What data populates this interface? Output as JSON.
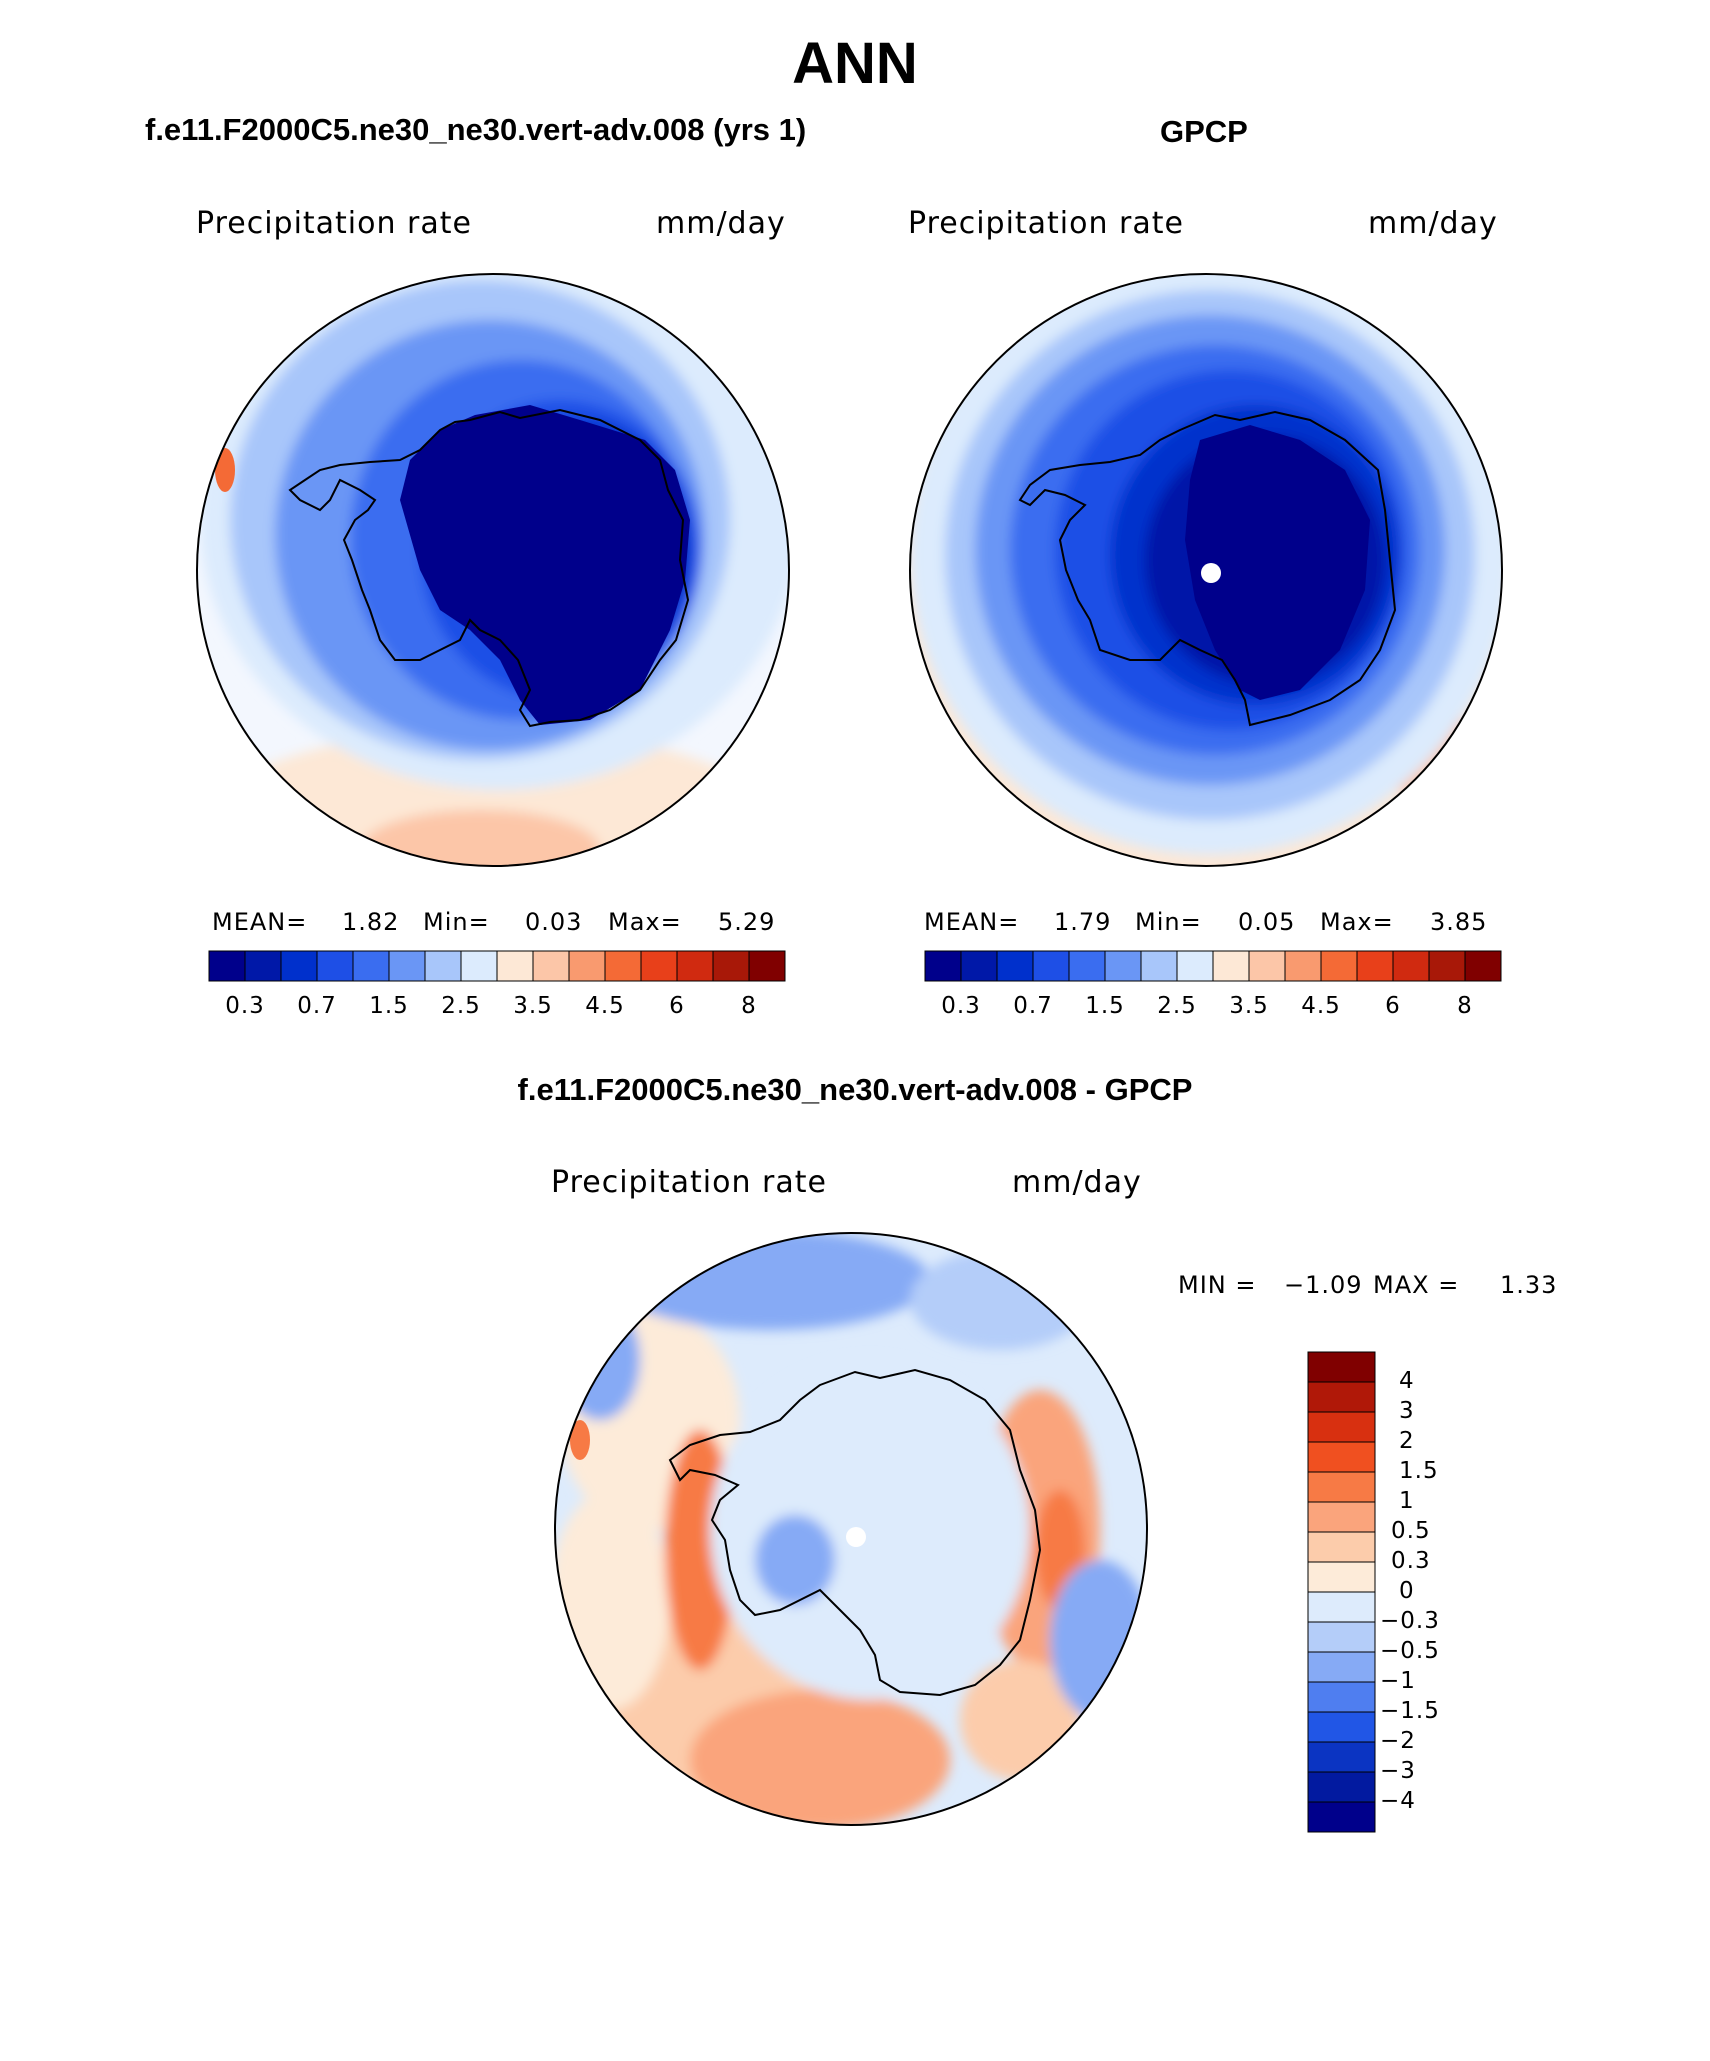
{
  "title": "ANN",
  "panels": [
    {
      "title": "f.e11.F2000C5.ne30_ne30.vert-adv.008 (yrs 1)",
      "variable": "Precipitation rate",
      "units": "mm/day",
      "stats": {
        "mean_label": "MEAN=",
        "mean": "1.82",
        "min_label": "Min=",
        "min": "0.03",
        "max_label": "Max=",
        "max": "5.29"
      }
    },
    {
      "title": "GPCP",
      "variable": "Precipitation rate",
      "units": "mm/day",
      "stats": {
        "mean_label": "MEAN=",
        "mean": "1.79",
        "min_label": "Min=",
        "min": "0.05",
        "max_label": "Max=",
        "max": "3.85"
      }
    },
    {
      "title": "f.e11.F2000C5.ne30_ne30.vert-adv.008 - GPCP",
      "variable": "Precipitation rate",
      "units": "mm/day",
      "stats": {
        "min_label": "MIN =",
        "min": "−1.09",
        "max_label": "MAX =",
        "max": "1.33"
      }
    }
  ],
  "chart_data": [
    {
      "type": "heatmap",
      "projection": "south polar stereographic",
      "title": "f.e11.F2000C5.ne30_ne30.vert-adv.008 (yrs 1)",
      "variable": "Precipitation rate",
      "units": "mm/day",
      "mean": 1.82,
      "min": 0.03,
      "max": 5.29,
      "colorbar_levels": [
        0.2,
        0.3,
        0.5,
        0.7,
        1,
        1.5,
        2,
        2.5,
        3,
        3.5,
        4,
        4.5,
        5,
        6,
        7,
        8
      ],
      "colorbar_tick_labels": [
        "0.3",
        "0.7",
        "1.5",
        "2.5",
        "3.5",
        "4.5",
        "6",
        "8"
      ],
      "colors": [
        "#00008b",
        "#0018a8",
        "#0030cc",
        "#1e4fe6",
        "#3a6df0",
        "#6a96f5",
        "#a8c6fa",
        "#dcebfd",
        "#fde8d6",
        "#fcc6a8",
        "#f99a6f",
        "#f46a36",
        "#e8401a",
        "#d02a10",
        "#a81808",
        "#800000"
      ]
    },
    {
      "type": "heatmap",
      "projection": "south polar stereographic",
      "title": "GPCP",
      "variable": "Precipitation rate",
      "units": "mm/day",
      "mean": 1.79,
      "min": 0.05,
      "max": 3.85,
      "colorbar_levels": [
        0.2,
        0.3,
        0.5,
        0.7,
        1,
        1.5,
        2,
        2.5,
        3,
        3.5,
        4,
        4.5,
        5,
        6,
        7,
        8
      ],
      "colorbar_tick_labels": [
        "0.3",
        "0.7",
        "1.5",
        "2.5",
        "3.5",
        "4.5",
        "6",
        "8"
      ],
      "colors": [
        "#00008b",
        "#0018a8",
        "#0030cc",
        "#1e4fe6",
        "#3a6df0",
        "#6a96f5",
        "#a8c6fa",
        "#dcebfd",
        "#fde8d6",
        "#fcc6a8",
        "#f99a6f",
        "#f46a36",
        "#e8401a",
        "#d02a10",
        "#a81808",
        "#800000"
      ]
    },
    {
      "type": "heatmap",
      "projection": "south polar stereographic",
      "title": "f.e11.F2000C5.ne30_ne30.vert-adv.008 - GPCP",
      "variable": "Precipitation rate",
      "units": "mm/day",
      "min": -1.09,
      "max": 1.33,
      "colorbar_levels": [
        "4",
        "3",
        "2",
        "1.5",
        "1",
        "0.5",
        "0.3",
        "0",
        "−0.3",
        "−0.5",
        "−1",
        "−1.5",
        "−2",
        "−3",
        "−4"
      ],
      "colors_top_to_bottom": [
        "#800000",
        "#b01808",
        "#d83010",
        "#f05020",
        "#f77a45",
        "#faa47c",
        "#fcccab",
        "#fdebd9",
        "#ddebfc",
        "#b4cdf9",
        "#86aaf5",
        "#4f7ef0",
        "#2156e6",
        "#0b34c2",
        "#021aa0",
        "#00008b"
      ]
    }
  ]
}
